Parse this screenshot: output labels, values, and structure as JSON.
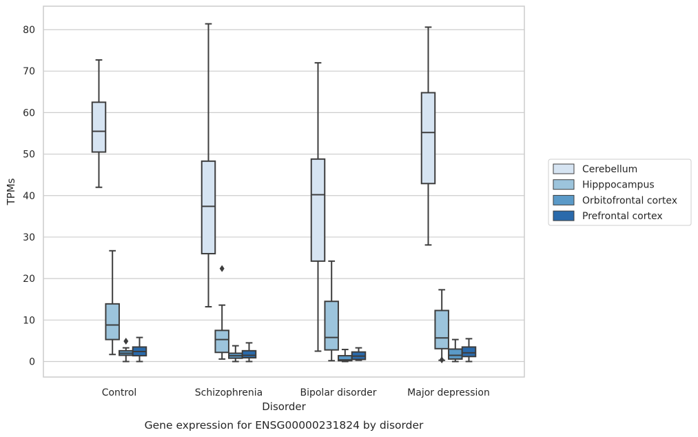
{
  "chart_data": {
    "type": "box",
    "xlabel": "Disorder",
    "ylabel": "TPMs",
    "caption": "Gene expression for ENSG00000231824 by disorder",
    "ylim": [
      -4,
      85
    ],
    "yticks": [
      0,
      10,
      20,
      30,
      40,
      50,
      60,
      70,
      80
    ],
    "grid": "horizontal",
    "legend_position": "right",
    "categories": [
      "Control",
      "Schizophrenia",
      "Bipolar disorder",
      "Major depression"
    ],
    "series": [
      {
        "name": "Cerebellum",
        "color": "#d6e4f2",
        "boxes": [
          {
            "whisker_low": 42,
            "q1": 50.5,
            "median": 55.5,
            "q3": 62.5,
            "whisker_high": 72.7,
            "outliers": []
          },
          {
            "whisker_low": 13.2,
            "q1": 26,
            "median": 37.4,
            "q3": 48.3,
            "whisker_high": 81.4,
            "outliers": []
          },
          {
            "whisker_low": 2.5,
            "q1": 24.2,
            "median": 40.2,
            "q3": 48.8,
            "whisker_high": 72,
            "outliers": []
          },
          {
            "whisker_low": 28.1,
            "q1": 42.9,
            "median": 55.2,
            "q3": 64.8,
            "whisker_high": 80.6,
            "outliers": []
          }
        ]
      },
      {
        "name": "Hipppocampus",
        "color": "#9cc4dc",
        "boxes": [
          {
            "whisker_low": 1.7,
            "q1": 5.3,
            "median": 8.8,
            "q3": 13.9,
            "whisker_high": 26.7,
            "outliers": []
          },
          {
            "whisker_low": 0.6,
            "q1": 2.2,
            "median": 5.3,
            "q3": 7.5,
            "whisker_high": 13.6,
            "outliers": [
              22.4
            ]
          },
          {
            "whisker_low": 0.2,
            "q1": 2.8,
            "median": 5.8,
            "q3": 14.5,
            "whisker_high": 24.2,
            "outliers": []
          },
          {
            "whisker_low": 0.3,
            "q1": 3.1,
            "median": 5.7,
            "q3": 12.3,
            "whisker_high": 17.3,
            "outliers": [
              0.4
            ]
          }
        ]
      },
      {
        "name": "Orbitofrontal cortex",
        "color": "#5b9ac8",
        "boxes": [
          {
            "whisker_low": 0,
            "q1": 1.5,
            "median": 2,
            "q3": 2.6,
            "whisker_high": 3.3,
            "outliers": [
              4.9
            ]
          },
          {
            "whisker_low": 0,
            "q1": 0.8,
            "median": 1.4,
            "q3": 2,
            "whisker_high": 3.8,
            "outliers": []
          },
          {
            "whisker_low": 0,
            "q1": 0.2,
            "median": 0.4,
            "q3": 1.4,
            "whisker_high": 2.9,
            "outliers": []
          },
          {
            "whisker_low": 0,
            "q1": 0.6,
            "median": 1.5,
            "q3": 3,
            "whisker_high": 5.3,
            "outliers": []
          }
        ]
      },
      {
        "name": "Prefrontal cortex",
        "color": "#2a6aab",
        "boxes": [
          {
            "whisker_low": 0,
            "q1": 1.4,
            "median": 2.4,
            "q3": 3.5,
            "whisker_high": 5.8,
            "outliers": []
          },
          {
            "whisker_low": 0,
            "q1": 0.9,
            "median": 1.5,
            "q3": 2.6,
            "whisker_high": 4.5,
            "outliers": []
          },
          {
            "whisker_low": 0.3,
            "q1": 0.5,
            "median": 1.3,
            "q3": 2.3,
            "whisker_high": 3.3,
            "outliers": []
          },
          {
            "whisker_low": 0,
            "q1": 1.2,
            "median": 2.1,
            "q3": 3.5,
            "whisker_high": 5.5,
            "outliers": []
          }
        ]
      }
    ]
  }
}
